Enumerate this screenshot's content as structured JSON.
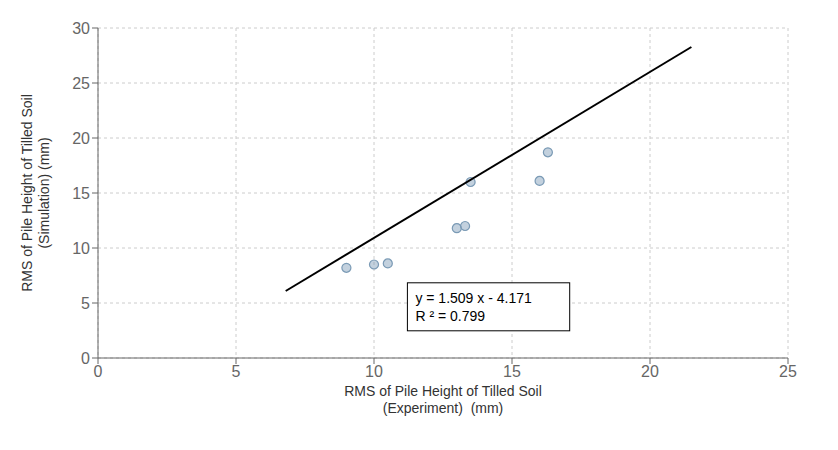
{
  "chart_data": {
    "type": "scatter",
    "x_label": "RMS of Pile Height of Tilled Soil\n(Experiment)  (mm)",
    "y_label": "RMS of Pile Height of Tilled Soil\n(Simulation) (mm)",
    "series": [
      {
        "type": "scatter",
        "color": "#7a9ab5",
        "x": [
          9.0,
          10.0,
          10.5,
          13.0,
          13.3,
          13.5,
          16.0,
          16.3
        ],
        "values": [
          8.2,
          8.5,
          8.6,
          11.8,
          12.0,
          16.0,
          16.1,
          18.7
        ]
      },
      {
        "type": "line",
        "color": "black",
        "x": [
          6.8,
          21.5
        ],
        "values": [
          6.0902,
          28.2725
        ]
      }
    ],
    "xlim": [
      0,
      25
    ],
    "ylim": [
      0,
      30
    ],
    "xticks": [
      0,
      5,
      10,
      15,
      20,
      25
    ],
    "yticks": [
      0,
      5,
      10,
      15,
      20,
      25,
      30
    ],
    "grid": true,
    "annotations": [
      {
        "text": "y = 1.509 x - 4.171\nR ² = 0.799",
        "x": 11.5,
        "y": 3.2
      }
    ]
  }
}
